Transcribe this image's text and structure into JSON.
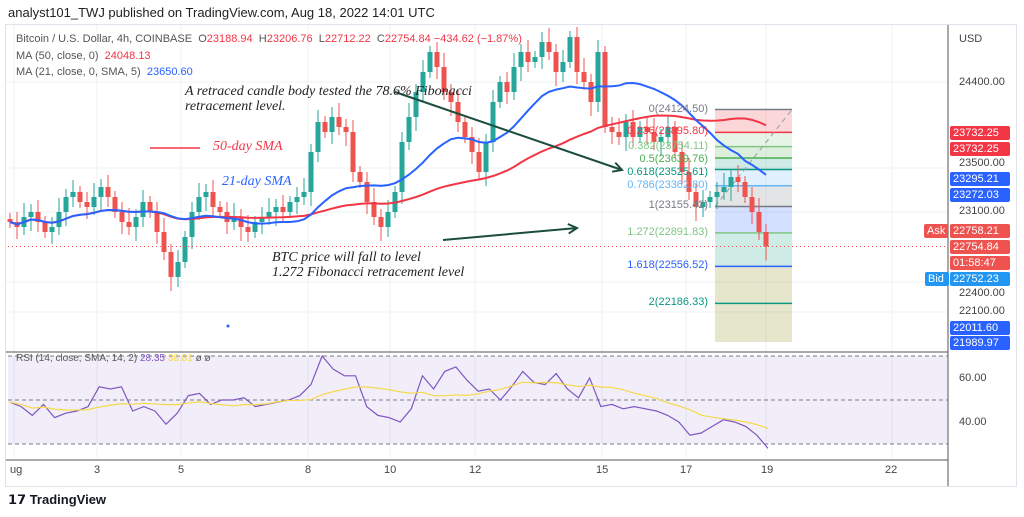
{
  "header": {
    "published": "analyst101_TWJ published on TradingView.com, Aug 18, 2022 14:01 UTC"
  },
  "legend": {
    "symbol": "Bitcoin / U.S. Dollar, 4h, COINBASE",
    "o_label": "O",
    "o": "23188.94",
    "h_label": "H",
    "h": "23206.76",
    "l_label": "L",
    "l": "22712.22",
    "c_label": "C",
    "c": "22754.84",
    "change": "−434.62 (−1.87%)",
    "ma50_label": "MA (50, close, 0)",
    "ma50": "24048.13",
    "ma21_label": "MA (21, close, 0, SMA, 5)",
    "ma21": "23650.60",
    "rsi_label": "RSI (14, close, SMA, 14, 2)",
    "rsi": "28.35",
    "rsi_ma": "38.81",
    "rsi_extra": "ø ø"
  },
  "axis": {
    "currency": "USD",
    "prices": [
      "24400.00",
      "23500.00",
      "23100.00",
      "22400.00",
      "22100.00"
    ],
    "rsi_ticks": [
      "60.00",
      "40.00"
    ],
    "dates": [
      "ug",
      "3",
      "5",
      "8",
      "10",
      "12",
      "15",
      "17",
      "19",
      "22"
    ]
  },
  "badges": [
    {
      "v": "23732.25",
      "c": "#f23645"
    },
    {
      "v": "23732.25",
      "c": "#f23645"
    },
    {
      "v": "23295.21",
      "c": "#2962ff"
    },
    {
      "v": "23272.03",
      "c": "#2962ff"
    },
    {
      "v": "22758.21",
      "c": "#ef5350"
    },
    {
      "v": "22754.84",
      "c": "#ef5350"
    },
    {
      "v": "01:58:47",
      "c": "#ef5350"
    },
    {
      "v": "22752.23",
      "c": "#2196f3"
    },
    {
      "v": "22011.60",
      "c": "#2962ff"
    },
    {
      "v": "21989.97",
      "c": "#2962ff"
    }
  ],
  "ask_label": "Ask",
  "bid_label": "Bid",
  "annotations": {
    "note1": "A retraced candle body tested the 78.6% Fibonacci retracement level.",
    "sma50": "50-day SMA",
    "sma21": "21-day SMA",
    "note2a": "BTC price will fall to level",
    "note2b": "1.272 Fibonacci retracement level"
  },
  "fib": [
    {
      "t": "0(24124.50)",
      "p": 24124.5,
      "c": "#787b86"
    },
    {
      "t": "0.236(23895.80)",
      "p": 23895.8,
      "c": "#f23645"
    },
    {
      "t": "0.382(23754.11)",
      "p": 23754.11,
      "c": "#81c784"
    },
    {
      "t": "0.5(23639.76)",
      "p": 23639.76,
      "c": "#4caf50"
    },
    {
      "t": "0.618(23525.61)",
      "p": 23525.61,
      "c": "#089981"
    },
    {
      "t": "0.786(23362.80)",
      "p": 23362.8,
      "c": "#64b5f6"
    },
    {
      "t": "1(23155.42)",
      "p": 23155.42,
      "c": "#787b86"
    },
    {
      "t": "1.272(22891.83)",
      "p": 22891.83,
      "c": "#81c784"
    },
    {
      "t": "1.618(22556.52)",
      "p": 22556.52,
      "c": "#2962ff"
    },
    {
      "t": "2(22186.33)",
      "p": 22186.33,
      "c": "#089981"
    }
  ],
  "footer": {
    "brand": "TradingView"
  },
  "chart_data": {
    "type": "candlestick",
    "title": "Bitcoin / U.S. Dollar, 4h, COINBASE",
    "ylabel": "USD",
    "ylim": [
      21850,
      25200
    ],
    "closes": [
      23000,
      22950,
      23050,
      23100,
      23000,
      22900,
      22950,
      23100,
      23250,
      23300,
      23200,
      23150,
      23250,
      23350,
      23250,
      23100,
      23000,
      22950,
      23050,
      23200,
      23100,
      22900,
      22700,
      22450,
      22600,
      22850,
      23100,
      23250,
      23300,
      23150,
      23100,
      23000,
      23050,
      22950,
      22900,
      23000,
      23050,
      23100,
      23150,
      23100,
      23200,
      23250,
      23300,
      23700,
      24000,
      23900,
      24050,
      23950,
      23900,
      23500,
      23400,
      23200,
      23050,
      22950,
      23100,
      23300,
      23800,
      24050,
      24300,
      24500,
      24700,
      24550,
      24300,
      24200,
      24000,
      23850,
      23700,
      23500,
      23800,
      24200,
      24400,
      24300,
      24550,
      24700,
      24600,
      24650,
      24800,
      24700,
      24500,
      24600,
      24850,
      24500,
      24400,
      24200,
      24700,
      23950,
      23900,
      23850,
      24000,
      23850,
      23950,
      23900,
      23800,
      23850,
      23950,
      23700,
      23500,
      23300,
      23150,
      23200,
      23250,
      23300,
      23350,
      23450,
      23400,
      23250,
      23100,
      22900,
      22755
    ],
    "rsi": [
      49,
      47,
      43,
      48,
      42,
      44,
      45,
      47,
      56,
      55,
      56,
      45,
      47,
      45,
      39,
      44,
      52,
      53,
      48,
      50,
      50,
      51,
      47,
      48,
      49,
      50,
      52,
      57,
      70,
      64,
      61,
      61,
      47,
      43,
      42,
      40,
      46,
      61,
      55,
      63,
      65,
      59,
      54,
      55,
      50,
      56,
      63,
      58,
      57,
      62,
      55,
      51,
      60,
      47,
      48,
      46,
      47,
      46,
      45,
      43,
      40,
      34,
      35,
      38,
      41,
      40,
      38,
      34,
      28
    ],
    "rsi_ylim": [
      25,
      75
    ]
  }
}
